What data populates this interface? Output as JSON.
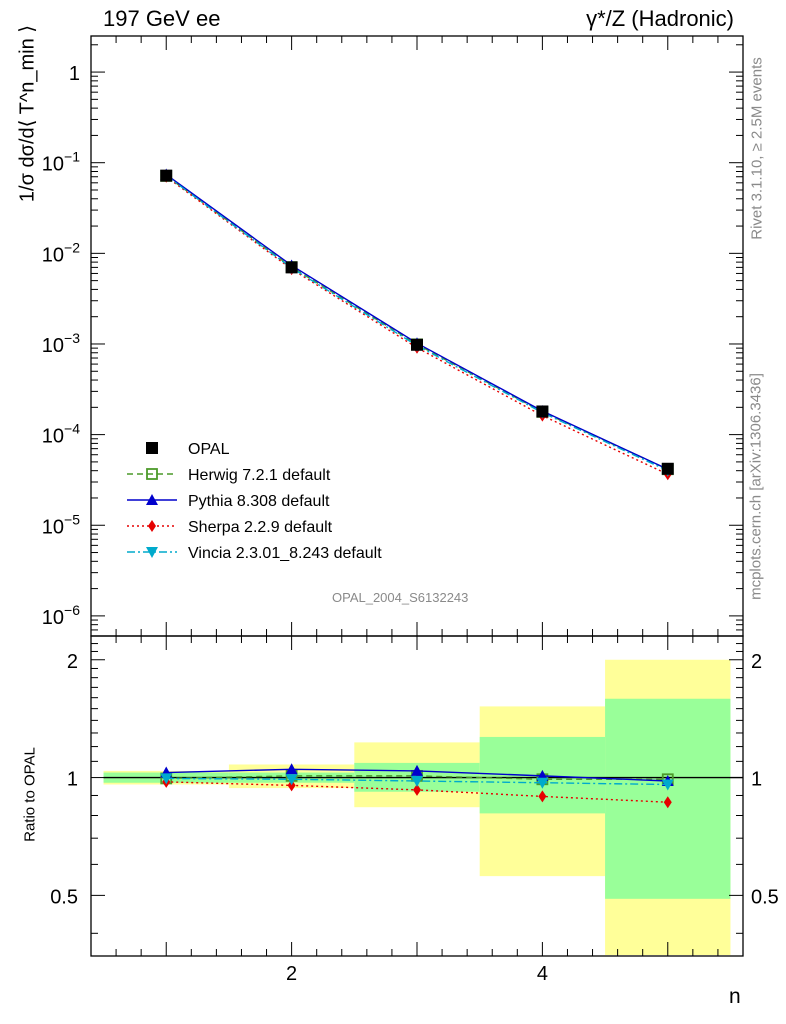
{
  "header": {
    "left_title": "197 GeV ee",
    "right_title": "γ*/Z (Hadronic)"
  },
  "side_labels": {
    "rivet": "Rivet 3.1.10, ≥ 2.5M events",
    "mcplots": "mcplots.cern.ch [arXiv:1306.3436]"
  },
  "watermark": "OPAL_2004_S6132243",
  "chart_data": [
    {
      "type": "line",
      "panel": "main",
      "ylabel": "1/σ dσ/d⟨ T^n_min ⟩",
      "yscale": "log",
      "ylim": [
        6e-07,
        2.5
      ],
      "xlim": [
        0.4,
        5.6
      ],
      "ytick_labels": [
        "10^-6",
        "10^-5",
        "10^-4",
        "10^-3",
        "10^-2",
        "10^-1",
        "1"
      ],
      "x": [
        1,
        2,
        3,
        4,
        5
      ],
      "legend_position": "lower-left",
      "series": [
        {
          "name": "OPAL",
          "values": [
            0.072,
            0.007,
            0.00098,
            0.00018,
            4.2e-05
          ],
          "color": "#000000",
          "marker": "square-filled",
          "line": "none"
        },
        {
          "name": "Herwig 7.2.1 default",
          "values": [
            0.0715,
            0.00705,
            0.00099,
            0.000178,
            4.15e-05
          ],
          "color": "#4c9a2a",
          "marker": "square-open",
          "line": "dashed"
        },
        {
          "name": "Pythia 8.308 default",
          "values": [
            0.074,
            0.00735,
            0.00102,
            0.000182,
            4.15e-05
          ],
          "color": "#0000cc",
          "marker": "triangle-up",
          "line": "solid"
        },
        {
          "name": "Sherpa 2.2.9 default",
          "values": [
            0.07,
            0.0067,
            0.00091,
            0.000162,
            3.65e-05
          ],
          "color": "#e60000",
          "marker": "diamond",
          "line": "dotted"
        },
        {
          "name": "Vincia 2.3.01_8.243 default",
          "values": [
            0.0718,
            0.0069,
            0.00096,
            0.000175,
            4e-05
          ],
          "color": "#00aacc",
          "marker": "triangle-down",
          "line": "dashdot"
        }
      ]
    },
    {
      "type": "line",
      "panel": "ratio",
      "ylabel": "Ratio to OPAL",
      "xlabel": "n",
      "yscale": "log",
      "ylim": [
        0.35,
        2.3
      ],
      "xlim": [
        0.4,
        5.6
      ],
      "ytick_labels": [
        "0.5",
        "1",
        "2"
      ],
      "xtick_labels": [
        "2",
        "4"
      ],
      "x": [
        1,
        2,
        3,
        4,
        5
      ],
      "bands": {
        "bins": [
          [
            0.5,
            1.5
          ],
          [
            1.5,
            2.5
          ],
          [
            2.5,
            3.5
          ],
          [
            3.5,
            4.5
          ],
          [
            4.5,
            5.5
          ]
        ],
        "stat_low": [
          0.97,
          0.97,
          0.92,
          0.81,
          0.49
        ],
        "stat_high": [
          1.03,
          1.03,
          1.09,
          1.27,
          1.59
        ],
        "total_low": [
          0.96,
          0.94,
          0.84,
          0.56,
          0.3
        ],
        "total_high": [
          1.04,
          1.08,
          1.23,
          1.52,
          2.0
        ],
        "stat_color": "#99ff99",
        "total_color": "#ffff99"
      },
      "series": [
        {
          "name": "Herwig 7.2.1 default",
          "values": [
            0.995,
            1.01,
            1.01,
            0.99,
            0.99
          ],
          "color": "#4c9a2a",
          "marker": "square-open",
          "line": "dashed"
        },
        {
          "name": "Pythia 8.308 default",
          "values": [
            1.03,
            1.05,
            1.04,
            1.01,
            0.98
          ],
          "color": "#0000cc",
          "marker": "triangle-up",
          "line": "solid"
        },
        {
          "name": "Sherpa 2.2.9 default",
          "values": [
            0.975,
            0.955,
            0.93,
            0.895,
            0.865
          ],
          "color": "#e60000",
          "marker": "diamond",
          "line": "dotted"
        },
        {
          "name": "Vincia 2.3.01_8.243 default",
          "values": [
            0.995,
            0.99,
            0.98,
            0.97,
            0.96
          ],
          "color": "#00aacc",
          "marker": "triangle-down",
          "line": "dashdot"
        }
      ]
    }
  ]
}
